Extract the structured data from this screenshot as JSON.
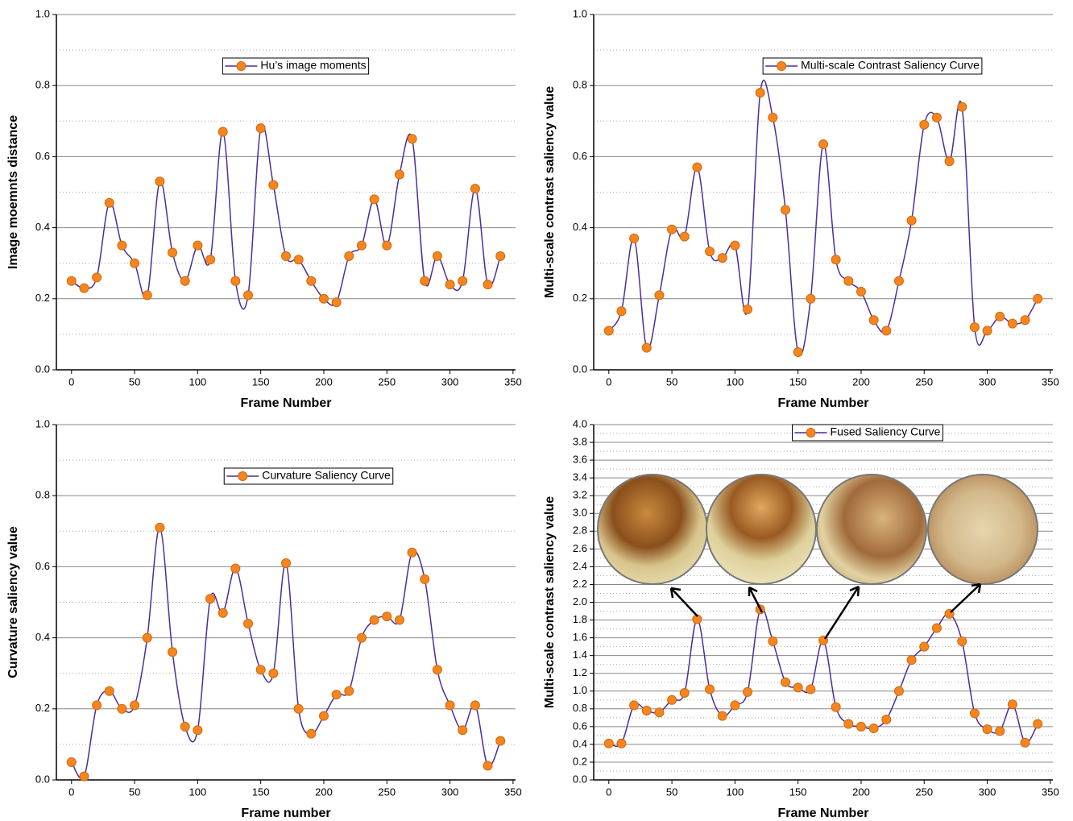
{
  "chart_data": [
    {
      "type": "line",
      "x_label": "Frame Number",
      "y_label": "Image moemnts distance",
      "x": [
        0,
        10,
        20,
        30,
        40,
        50,
        60,
        70,
        80,
        90,
        100,
        110,
        120,
        130,
        140,
        150,
        160,
        170,
        180,
        190,
        200,
        210,
        220,
        230,
        240,
        250,
        260,
        270,
        280,
        290,
        300,
        310,
        320,
        330,
        340
      ],
      "series": [
        {
          "name": "Hu’s image moments",
          "color": "#4b2d9f",
          "marker_color": "#f5861f",
          "values": [
            0.25,
            0.23,
            0.26,
            0.47,
            0.35,
            0.3,
            0.21,
            0.53,
            0.33,
            0.25,
            0.35,
            0.31,
            0.67,
            0.25,
            0.21,
            0.68,
            0.52,
            0.32,
            0.31,
            0.25,
            0.2,
            0.19,
            0.32,
            0.35,
            0.48,
            0.35,
            0.55,
            0.65,
            0.25,
            0.32,
            0.24,
            0.25,
            0.51,
            0.24,
            0.32
          ]
        }
      ],
      "xlim": [
        -12,
        352
      ],
      "xticks": [
        0,
        50,
        100,
        150,
        200,
        250,
        300,
        350
      ],
      "ylim": [
        0,
        1
      ],
      "yticks": [
        {
          "value": 0,
          "label": "0.0"
        },
        0.2,
        0.4,
        0.6,
        0.8,
        {
          "value": 1,
          "label": "1.0"
        }
      ],
      "grid": true,
      "legend": "top"
    },
    {
      "type": "line",
      "x_label": "Frame Number",
      "y_label": "Multi-scale contrast saliency value",
      "x": [
        0,
        10,
        20,
        30,
        40,
        50,
        60,
        70,
        80,
        90,
        100,
        110,
        120,
        130,
        140,
        150,
        160,
        170,
        180,
        190,
        200,
        210,
        220,
        230,
        240,
        250,
        260,
        270,
        280,
        290,
        300,
        310,
        320,
        330,
        340
      ],
      "series": [
        {
          "name": "Multi-scale Contrast Saliency Curve",
          "color": "#4b2d9f",
          "marker_color": "#f5861f",
          "values": [
            0.11,
            0.165,
            0.37,
            0.062,
            0.21,
            0.395,
            0.375,
            0.57,
            0.333,
            0.315,
            0.35,
            0.17,
            0.78,
            0.71,
            0.45,
            0.05,
            0.2,
            0.635,
            0.31,
            0.25,
            0.22,
            0.14,
            0.11,
            0.25,
            0.42,
            0.69,
            0.71,
            0.587,
            0.74,
            0.12,
            0.11,
            0.15,
            0.13,
            0.14,
            0.2
          ]
        }
      ],
      "xlim": [
        -12,
        352
      ],
      "xticks": [
        0,
        50,
        100,
        150,
        200,
        250,
        300,
        350
      ],
      "ylim": [
        0,
        1
      ],
      "yticks": [
        {
          "value": 0,
          "label": "0.0"
        },
        0.2,
        0.4,
        0.6,
        0.8,
        {
          "value": 1,
          "label": "1.0"
        }
      ],
      "grid": true,
      "legend": "top"
    },
    {
      "type": "line",
      "x_label": "Frame number",
      "y_label": "Curvature saliency value",
      "x": [
        0,
        10,
        20,
        30,
        40,
        50,
        60,
        70,
        80,
        90,
        100,
        110,
        120,
        130,
        140,
        150,
        160,
        170,
        180,
        190,
        200,
        210,
        220,
        230,
        240,
        250,
        260,
        270,
        280,
        290,
        300,
        310,
        320,
        330,
        340
      ],
      "series": [
        {
          "name": "Curvature Saliency Curve",
          "color": "#4b2d9f",
          "marker_color": "#f5861f",
          "values": [
            0.05,
            0.01,
            0.21,
            0.25,
            0.2,
            0.21,
            0.4,
            0.71,
            0.36,
            0.15,
            0.14,
            0.51,
            0.47,
            0.595,
            0.44,
            0.31,
            0.3,
            0.61,
            0.2,
            0.13,
            0.18,
            0.24,
            0.25,
            0.4,
            0.45,
            0.46,
            0.45,
            0.64,
            0.565,
            0.31,
            0.21,
            0.14,
            0.21,
            0.04,
            0.11
          ]
        }
      ],
      "xlim": [
        -12,
        352
      ],
      "xticks": [
        0,
        50,
        100,
        150,
        200,
        250,
        300,
        350
      ],
      "ylim": [
        0,
        1
      ],
      "yticks": [
        {
          "value": 0,
          "label": "0.0"
        },
        0.2,
        0.4,
        0.6,
        0.8,
        {
          "value": 1,
          "label": "1.0"
        }
      ],
      "grid": true,
      "legend": "top"
    },
    {
      "type": "line",
      "x_label": "Frame Number",
      "y_label": "Multi-scale contrast saliency value",
      "x": [
        0,
        10,
        20,
        30,
        40,
        50,
        60,
        70,
        80,
        90,
        100,
        110,
        120,
        130,
        140,
        150,
        160,
        170,
        180,
        190,
        200,
        210,
        220,
        230,
        240,
        250,
        260,
        270,
        280,
        290,
        300,
        310,
        320,
        330,
        340
      ],
      "series": [
        {
          "name": "Fused Saliency Curve",
          "color": "#4b2d9f",
          "marker_color": "#f5861f",
          "values": [
            0.41,
            0.41,
            0.84,
            0.78,
            0.76,
            0.9,
            0.98,
            1.81,
            1.02,
            0.72,
            0.84,
            0.99,
            1.92,
            1.56,
            1.1,
            1.04,
            1.02,
            1.57,
            0.82,
            0.63,
            0.6,
            0.58,
            0.68,
            1.0,
            1.35,
            1.5,
            1.71,
            1.87,
            1.56,
            0.75,
            0.57,
            0.55,
            0.85,
            0.42,
            0.63
          ]
        }
      ],
      "xlim": [
        -12,
        352
      ],
      "xticks": [
        0,
        50,
        100,
        150,
        200,
        250,
        300,
        350
      ],
      "ylim": [
        0,
        4
      ],
      "yticks": [
        {
          "value": 0,
          "label": "0.0"
        },
        0.2,
        0.4,
        0.6,
        0.8,
        {
          "value": 1,
          "label": "1.0"
        },
        1.2,
        1.4,
        1.6,
        1.8,
        {
          "value": 2,
          "label": "2.0"
        },
        2.2,
        2.4,
        2.6,
        2.8,
        {
          "value": 3,
          "label": "3.0"
        },
        3.2,
        3.4,
        3.6,
        3.8,
        {
          "value": 4,
          "label": "4.0"
        }
      ],
      "grid": true,
      "legend": "top"
    }
  ]
}
